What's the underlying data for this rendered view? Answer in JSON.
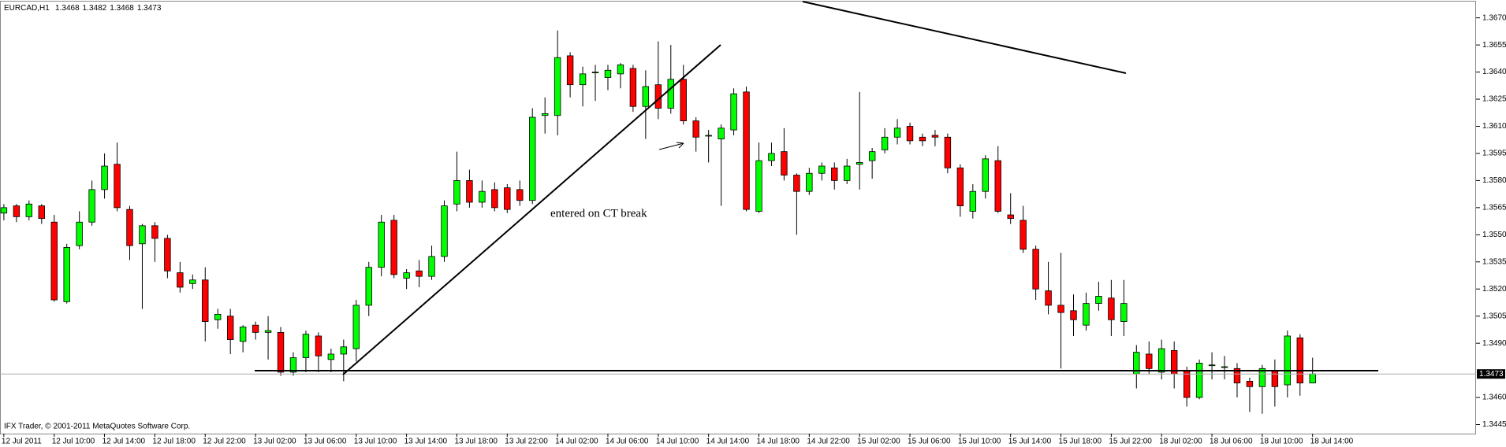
{
  "chart_data": {
    "type": "candlestick",
    "title": "EURCAD,H1",
    "footer": "IFX Trader, © 2001-2011 MetaQuotes Software Corp.",
    "annotation": "entered on CT break",
    "up_color": "#00ff00",
    "down_color": "#ff0000",
    "wick_color": "#000000",
    "categories": [
      "12 Jul 2011",
      null,
      null,
      null,
      "12 Jul 10:00",
      null,
      null,
      null,
      "12 Jul 14:00",
      null,
      null,
      null,
      "12 Jul 18:00",
      null,
      null,
      null,
      "12 Jul 22:00",
      null,
      null,
      null,
      "13 Jul 02:00",
      null,
      null,
      null,
      "13 Jul 06:00",
      null,
      null,
      null,
      "13 Jul 10:00",
      null,
      null,
      null,
      "13 Jul 14:00",
      null,
      null,
      null,
      "13 Jul 18:00",
      null,
      null,
      null,
      "13 Jul 22:00",
      null,
      null,
      null,
      "14 Jul 02:00",
      null,
      null,
      null,
      "14 Jul 06:00",
      null,
      null,
      null,
      "14 Jul 10:00",
      null,
      null,
      null,
      "14 Jul 14:00",
      null,
      null,
      null,
      "14 Jul 18:00",
      null,
      null,
      null,
      "14 Jul 22:00",
      null,
      null,
      null,
      "15 Jul 02:00",
      null,
      null,
      null,
      "15 Jul 06:00",
      null,
      null,
      null,
      "15 Jul 10:00",
      null,
      null,
      null,
      "15 Jul 14:00",
      null,
      null,
      null,
      "15 Jul 18:00",
      null,
      null,
      null,
      "15 Jul 22:00",
      null,
      null,
      null,
      "18 Jul 02:00",
      null,
      null,
      null,
      "18 Jul 06:00",
      null,
      null,
      null,
      "18 Jul 10:00",
      null,
      null,
      null,
      "18 Jul 14:00"
    ],
    "open": [
      1.3562,
      1.3566,
      1.356,
      1.3566,
      1.3557,
      1.3513,
      1.3544,
      1.3557,
      1.3575,
      1.3589,
      1.3564,
      1.3545,
      1.3555,
      1.3548,
      1.3529,
      1.3523,
      1.3525,
      1.3503,
      1.3505,
      1.3491,
      1.35,
      1.3496,
      1.3496,
      1.3474,
      1.3482,
      1.3494,
      1.3481,
      1.3484,
      1.3487,
      1.3511,
      1.3532,
      1.3558,
      1.3526,
      1.353,
      1.3527,
      1.3538,
      1.3567,
      1.358,
      1.3568,
      1.3575,
      1.3576,
      1.3575,
      1.3569,
      1.3616,
      1.3616,
      1.3649,
      1.3633,
      1.364,
      1.3637,
      1.3639,
      1.3642,
      1.3621,
      1.3633,
      1.362,
      1.3636,
      1.3613,
      1.3605,
      1.3603,
      1.3608,
      1.3629,
      1.3563,
      1.3591,
      1.3596,
      1.3583,
      1.3574,
      1.3584,
      1.3587,
      1.358,
      1.3589,
      1.3591,
      1.3597,
      1.3604,
      1.361,
      1.3604,
      1.3605,
      1.3604,
      1.3587,
      1.3563,
      1.3574,
      1.3591,
      1.3561,
      1.3558,
      1.3542,
      1.3519,
      1.3511,
      1.3508,
      1.35,
      1.3512,
      1.3515,
      1.3502,
      1.3473,
      1.3484,
      1.3474,
      1.3486,
      1.3475,
      1.346,
      1.3478,
      1.3477,
      1.3476,
      1.3469,
      1.3466,
      1.3475,
      1.3467,
      1.3493,
      1.3468
    ],
    "high": [
      1.3567,
      1.3567,
      1.3569,
      1.3567,
      1.3561,
      1.3545,
      1.3563,
      1.358,
      1.3595,
      1.3601,
      1.3566,
      1.3556,
      1.3557,
      1.355,
      1.3535,
      1.3528,
      1.3532,
      1.3509,
      1.3509,
      1.35,
      1.3502,
      1.3505,
      1.3499,
      1.3485,
      1.3497,
      1.3496,
      1.3487,
      1.3492,
      1.3514,
      1.3535,
      1.3561,
      1.3561,
      1.3531,
      1.3536,
      1.3544,
      1.3569,
      1.3596,
      1.3586,
      1.358,
      1.3579,
      1.3578,
      1.358,
      1.362,
      1.3626,
      1.3663,
      1.3651,
      1.3643,
      1.3644,
      1.3644,
      1.3645,
      1.3644,
      1.3641,
      1.3657,
      1.3655,
      1.3644,
      1.3615,
      1.3608,
      1.3611,
      1.3631,
      1.3632,
      1.3601,
      1.3601,
      1.3609,
      1.3584,
      1.3587,
      1.359,
      1.359,
      1.3592,
      1.3629,
      1.3598,
      1.3609,
      1.3614,
      1.3612,
      1.3606,
      1.3608,
      1.3606,
      1.3589,
      1.3578,
      1.3594,
      1.3599,
      1.3573,
      1.3566,
      1.3544,
      1.3535,
      1.354,
      1.3517,
      1.3518,
      1.3524,
      1.3525,
      1.3525,
      1.3489,
      1.3491,
      1.3492,
      1.3491,
      1.3477,
      1.3481,
      1.3485,
      1.3483,
      1.3479,
      1.3471,
      1.3478,
      1.3481,
      1.3497,
      1.3495,
      1.3482
    ],
    "low": [
      1.3558,
      1.3557,
      1.3558,
      1.3556,
      1.3513,
      1.3512,
      1.3542,
      1.3555,
      1.357,
      1.3563,
      1.3536,
      1.3509,
      1.3535,
      1.3526,
      1.3518,
      1.352,
      1.3491,
      1.3498,
      1.3484,
      1.3485,
      1.3492,
      1.3481,
      1.3472,
      1.3472,
      1.3474,
      1.3474,
      1.3474,
      1.3469,
      1.348,
      1.3505,
      1.3527,
      1.3526,
      1.352,
      1.3521,
      1.3525,
      1.3535,
      1.3563,
      1.3565,
      1.3565,
      1.3563,
      1.3562,
      1.3566,
      1.3567,
      1.3606,
      1.3605,
      1.3626,
      1.3621,
      1.3624,
      1.363,
      1.3631,
      1.3618,
      1.3603,
      1.3614,
      1.3617,
      1.3611,
      1.3596,
      1.359,
      1.3566,
      1.3605,
      1.3563,
      1.3562,
      1.3588,
      1.358,
      1.355,
      1.3572,
      1.358,
      1.3575,
      1.3578,
      1.3575,
      1.3581,
      1.3595,
      1.36,
      1.36,
      1.3599,
      1.3599,
      1.3584,
      1.356,
      1.3559,
      1.357,
      1.3562,
      1.3556,
      1.354,
      1.3514,
      1.3506,
      1.3476,
      1.3494,
      1.3497,
      1.3508,
      1.3494,
      1.3494,
      1.3465,
      1.3473,
      1.347,
      1.3465,
      1.3455,
      1.3459,
      1.347,
      1.347,
      1.346,
      1.3452,
      1.3451,
      1.3455,
      1.346,
      1.3461,
      1.3468
    ],
    "close": [
      1.3565,
      1.356,
      1.3567,
      1.3559,
      1.3514,
      1.3543,
      1.3557,
      1.3575,
      1.3588,
      1.3565,
      1.3544,
      1.3555,
      1.3548,
      1.353,
      1.3521,
      1.3525,
      1.3502,
      1.3506,
      1.3492,
      1.3499,
      1.3496,
      1.3497,
      1.3474,
      1.3482,
      1.3495,
      1.3483,
      1.3484,
      1.3488,
      1.3511,
      1.3532,
      1.3557,
      1.3528,
      1.3529,
      1.3527,
      1.3538,
      1.3566,
      1.358,
      1.3568,
      1.3574,
      1.3565,
      1.3564,
      1.3569,
      1.3615,
      1.3617,
      1.3648,
      1.3633,
      1.3639,
      1.364,
      1.3641,
      1.3644,
      1.3621,
      1.3632,
      1.362,
      1.3636,
      1.3613,
      1.3604,
      1.3605,
      1.3609,
      1.3628,
      1.3564,
      1.3591,
      1.3595,
      1.3583,
      1.3574,
      1.3584,
      1.3588,
      1.358,
      1.3588,
      1.359,
      1.3596,
      1.3604,
      1.3609,
      1.3602,
      1.3602,
      1.3604,
      1.3587,
      1.3566,
      1.3574,
      1.3592,
      1.3563,
      1.3559,
      1.3542,
      1.352,
      1.3511,
      1.3507,
      1.3503,
      1.3512,
      1.3516,
      1.3503,
      1.3512,
      1.3485,
      1.3476,
      1.3487,
      1.3473,
      1.346,
      1.3479,
      1.3478,
      1.3477,
      1.3468,
      1.3466,
      1.3476,
      1.3466,
      1.3494,
      1.3468,
      1.3473
    ],
    "ylim": [
      1.344,
      1.3679
    ],
    "yticks": [
      {
        "value": 1.367,
        "label": "1.3670"
      },
      {
        "value": 1.3655,
        "label": "1.3655"
      },
      {
        "value": 1.364,
        "label": "1.3640"
      },
      {
        "value": 1.3625,
        "label": "1.3625"
      },
      {
        "value": 1.361,
        "label": "1.3610"
      },
      {
        "value": 1.3595,
        "label": "1.3595"
      },
      {
        "value": 1.358,
        "label": "1.3580"
      },
      {
        "value": 1.3565,
        "label": "1.3565"
      },
      {
        "value": 1.355,
        "label": "1.3550"
      },
      {
        "value": 1.3535,
        "label": "1.3535"
      },
      {
        "value": 1.352,
        "label": "1.3520"
      },
      {
        "value": 1.3505,
        "label": "1.3505"
      },
      {
        "value": 1.349,
        "label": "1.3490"
      },
      {
        "value": 1.346,
        "label": "1.3460"
      },
      {
        "value": 1.3445,
        "label": "1.3445"
      }
    ]
  }
}
